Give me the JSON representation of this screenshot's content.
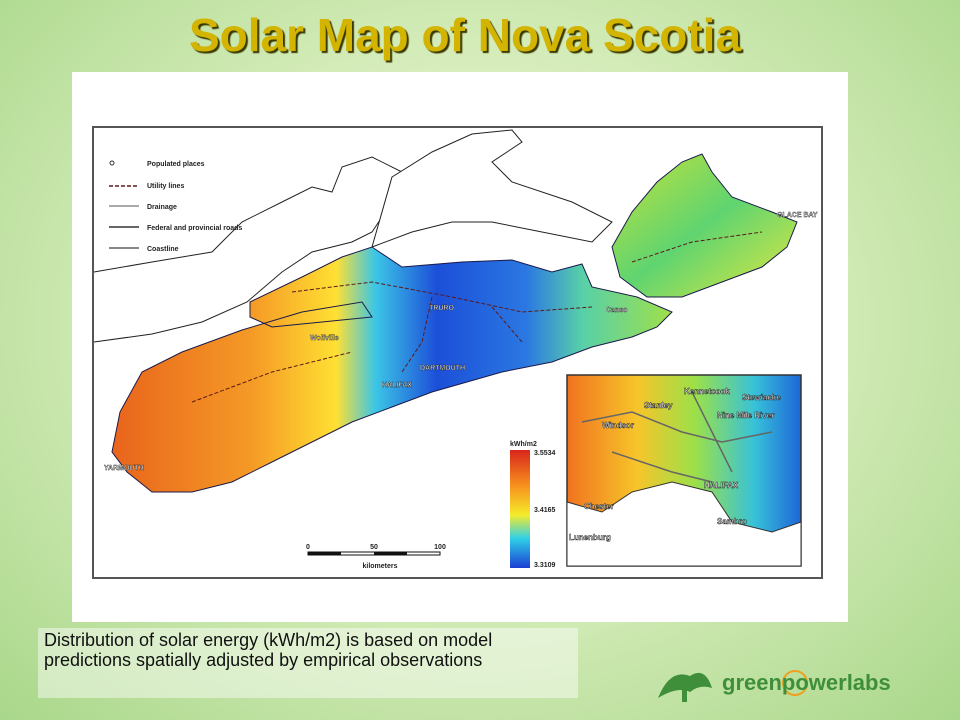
{
  "title": "Solar Map of Nova Scotia",
  "map": {
    "legend": [
      "Populated places",
      "Utility lines",
      "Drainage",
      "Federal and provincial roads",
      "Coastline"
    ],
    "places": [
      "TRURO",
      "Canso",
      "GLACE BAY",
      "Wolfville",
      "DARTMOUTH",
      "HALIFAX",
      "YARMOUTH"
    ],
    "scale": {
      "ticks": [
        0,
        50,
        100
      ],
      "unit": "kilometers"
    },
    "colorbar": {
      "unit": "kWh/m2",
      "values": [
        3.5534,
        3.4165,
        3.3109
      ]
    },
    "inset": {
      "places": [
        "Kennetcook",
        "Stewiacke",
        "Stanley",
        "Nine Mile River",
        "Windsor",
        "HALIFAX",
        "Chester",
        "Sambro",
        "Lunenburg"
      ]
    }
  },
  "caption": "Distribution of solar energy (kWh/m2) is based on model predictions spatially adjusted by empirical observations",
  "logo": "greenpowerlabs"
}
